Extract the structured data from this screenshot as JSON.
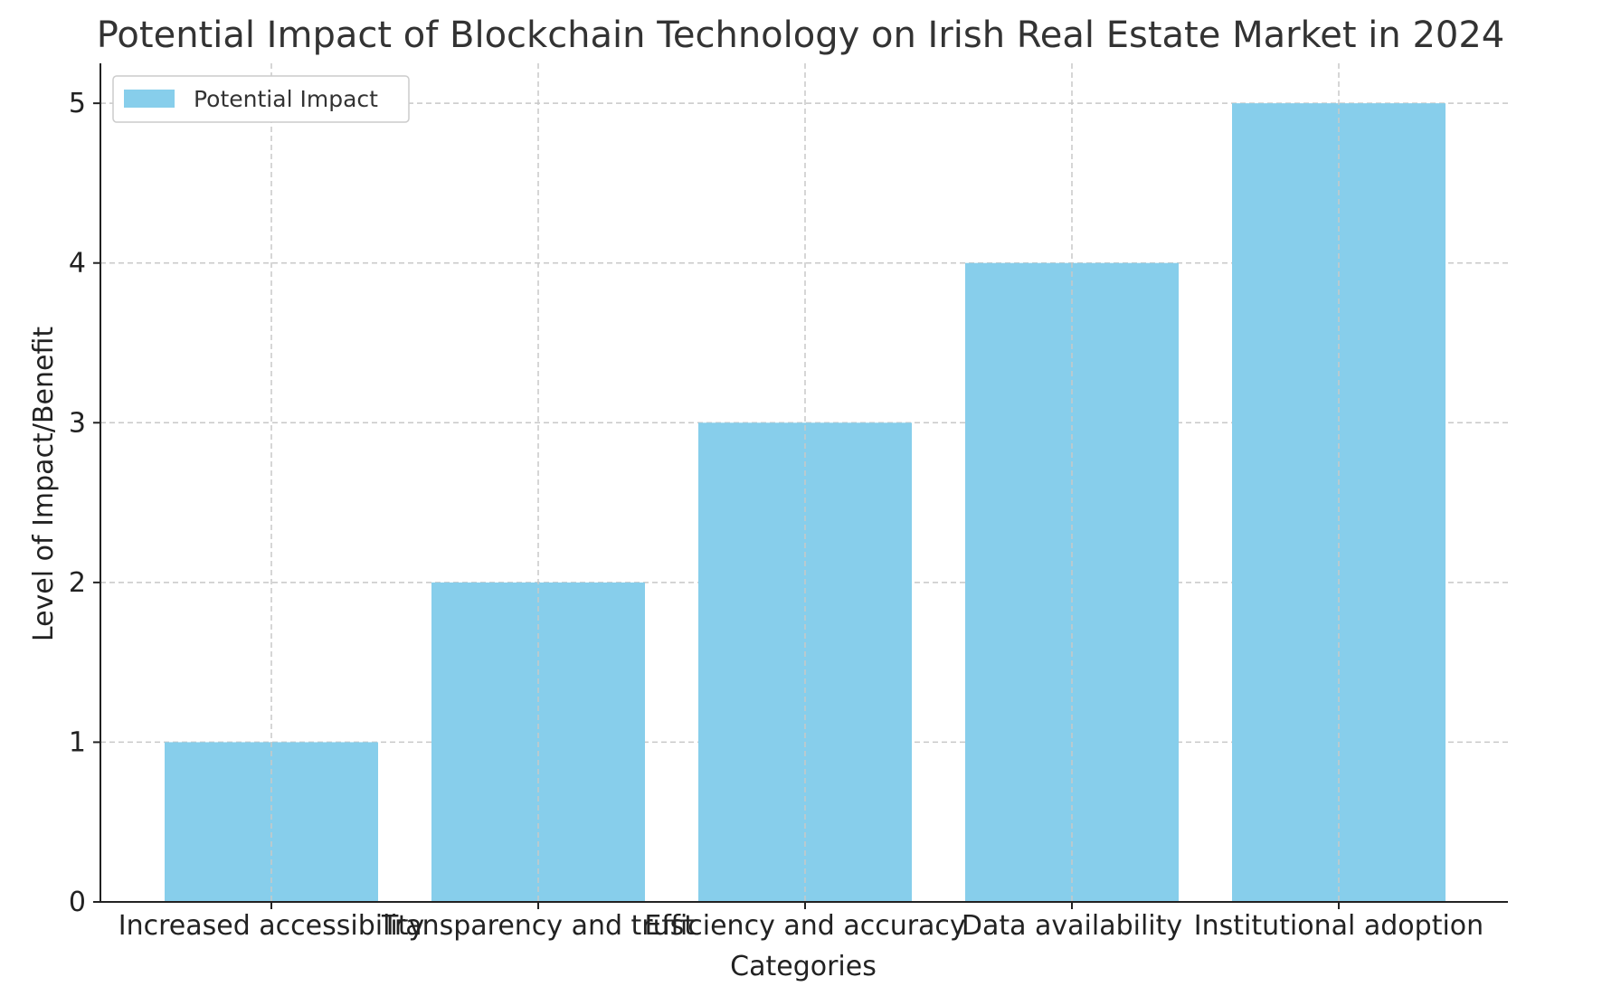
{
  "chart_data": {
    "type": "bar",
    "title": "Potential Impact of Blockchain Technology on Irish Real Estate Market in 2024",
    "xlabel": "Categories",
    "ylabel": "Level of Impact/Benefit",
    "categories": [
      "Increased accessibility",
      "Transparency and trust",
      "Efficiency and accuracy",
      "Data availability",
      "Institutional adoption"
    ],
    "series": [
      {
        "name": "Potential Impact",
        "values": [
          1,
          2,
          3,
          4,
          5
        ],
        "color": "#87CEEB"
      }
    ],
    "ylim": [
      0,
      5.25
    ],
    "yticks": [
      0,
      1,
      2,
      3,
      4,
      5
    ],
    "grid": true,
    "legend_position": "top-left"
  }
}
